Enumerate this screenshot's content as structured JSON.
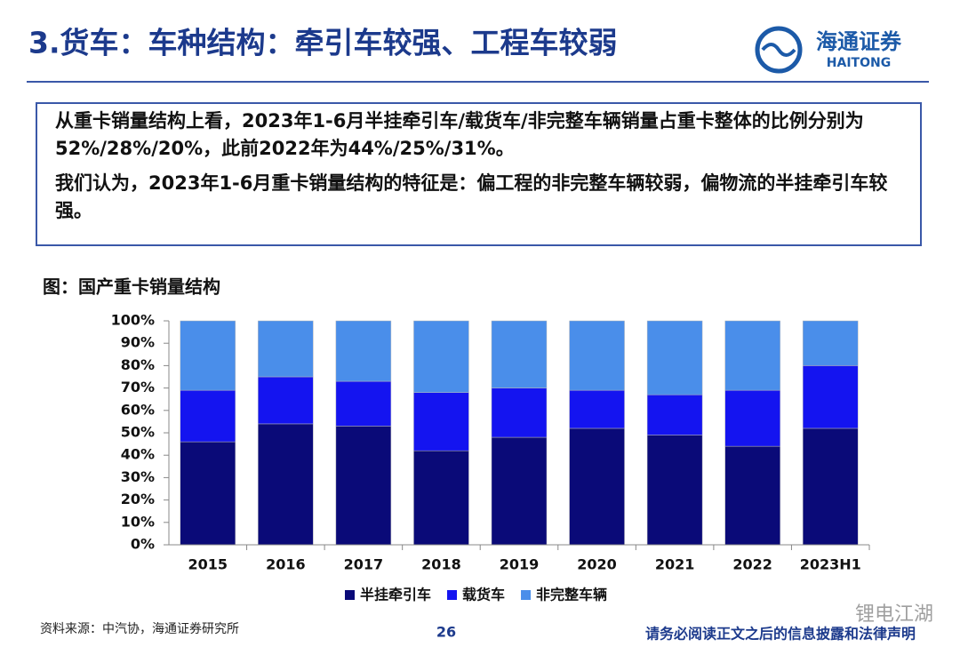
{
  "header": {
    "title": "3.货车：车种结构：牵引车较强、工程车较弱",
    "logo_cn": "海通证券",
    "logo_en": "HAITONG"
  },
  "summary": [
    "从重卡销量结构上看，2023年1-6月半挂牵引车/载货车/非完整车辆销量占重卡整体的比例分别为52%/28%/20%，此前2022年为44%/25%/31%。",
    "我们认为，2023年1-6月重卡销量结构的特征是：偏工程的非完整车辆较弱，偏物流的半挂牵引车较强。"
  ],
  "chart_data": {
    "type": "stacked_bar",
    "title": "图：国产重卡销量结构",
    "categories": [
      "2015",
      "2016",
      "2017",
      "2018",
      "2019",
      "2020",
      "2021",
      "2022",
      "2023H1"
    ],
    "series": [
      {
        "name": "半挂牵引车",
        "color": "#0a0a78",
        "values": [
          46,
          54,
          53,
          42,
          48,
          52,
          49,
          44,
          52
        ]
      },
      {
        "name": "载货车",
        "color": "#1414f0",
        "values": [
          23,
          21,
          20,
          26,
          22,
          17,
          18,
          25,
          28
        ]
      },
      {
        "name": "非完整车辆",
        "color": "#4a8eea",
        "values": [
          31,
          25,
          27,
          32,
          30,
          31,
          33,
          31,
          20
        ]
      }
    ],
    "ylim": [
      0,
      100
    ],
    "yticks": [
      {
        "value": 0,
        "label": "0%"
      },
      {
        "value": 10,
        "label": "10%"
      },
      {
        "value": 20,
        "label": "20%"
      },
      {
        "value": 30,
        "label": "30%"
      },
      {
        "value": 40,
        "label": "40%"
      },
      {
        "value": 50,
        "label": "50%"
      },
      {
        "value": 60,
        "label": "60%"
      },
      {
        "value": 70,
        "label": "70%"
      },
      {
        "value": 80,
        "label": "80%"
      },
      {
        "value": 90,
        "label": "90%"
      },
      {
        "value": 100,
        "label": "100%"
      }
    ],
    "legend": "bottom"
  },
  "footer": {
    "source": "资料来源：中汽协，海通证券研究所",
    "page": "26",
    "disclaimer": "请务必阅读正文之后的信息披露和法律声明",
    "watermark": "锂电江湖"
  }
}
